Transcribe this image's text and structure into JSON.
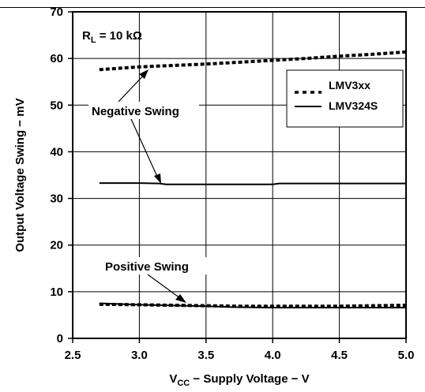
{
  "chart_data": {
    "type": "line",
    "title": "",
    "xlabel": {
      "prefix": "V",
      "sub": "CC",
      "rest": " − Supply Voltage − V"
    },
    "ylabel": "Output Voltage Swing − mV",
    "xlim": [
      2.5,
      5.0
    ],
    "ylim": [
      0,
      70
    ],
    "xticks": [
      "2.5",
      "3.0",
      "3.5",
      "4.0",
      "4.5",
      "5.0"
    ],
    "yticks": [
      "0",
      "10",
      "20",
      "30",
      "40",
      "50",
      "60",
      "70"
    ],
    "grid": true,
    "legend": {
      "placement": "top-right",
      "entries": [
        {
          "label": "LMV3xx",
          "style": "dotted"
        },
        {
          "label": "LMV324S",
          "style": "solid"
        }
      ]
    },
    "annotations": {
      "rl": {
        "prefix": "R",
        "sub": "L",
        "rest": " = 10 kΩ"
      },
      "negative": "Negative Swing",
      "positive": "Positive Swing"
    },
    "series": [
      {
        "name": "LMV3xx",
        "group": "Negative Swing",
        "style": "dotted",
        "x": [
          2.7,
          3.0,
          3.25,
          3.5,
          3.75,
          4.0,
          4.25,
          4.5,
          4.75,
          5.0
        ],
        "y": [
          57.6,
          58.2,
          58.5,
          58.8,
          59.2,
          59.6,
          60.0,
          60.5,
          60.9,
          61.4
        ]
      },
      {
        "name": "LMV324S",
        "group": "Negative Swing",
        "style": "solid",
        "x": [
          2.7,
          3.0,
          3.15,
          3.2,
          3.5,
          4.0,
          4.05,
          4.5,
          5.0
        ],
        "y": [
          33.3,
          33.3,
          33.2,
          33.0,
          33.0,
          33.0,
          33.2,
          33.2,
          33.2
        ]
      },
      {
        "name": "LMV3xx",
        "group": "Positive Swing",
        "style": "dotted",
        "x": [
          2.7,
          3.0,
          3.25,
          3.5,
          3.75,
          4.0,
          4.25,
          4.5,
          4.75,
          5.0
        ],
        "y": [
          7.3,
          7.2,
          7.1,
          7.0,
          6.9,
          6.9,
          6.9,
          6.9,
          7.0,
          7.1
        ]
      },
      {
        "name": "LMV324S",
        "group": "Positive Swing",
        "style": "solid",
        "x": [
          2.7,
          3.0,
          3.5,
          3.7,
          4.0,
          4.5,
          5.0
        ],
        "y": [
          7.5,
          7.2,
          6.9,
          6.7,
          6.6,
          6.6,
          6.6
        ]
      }
    ]
  }
}
